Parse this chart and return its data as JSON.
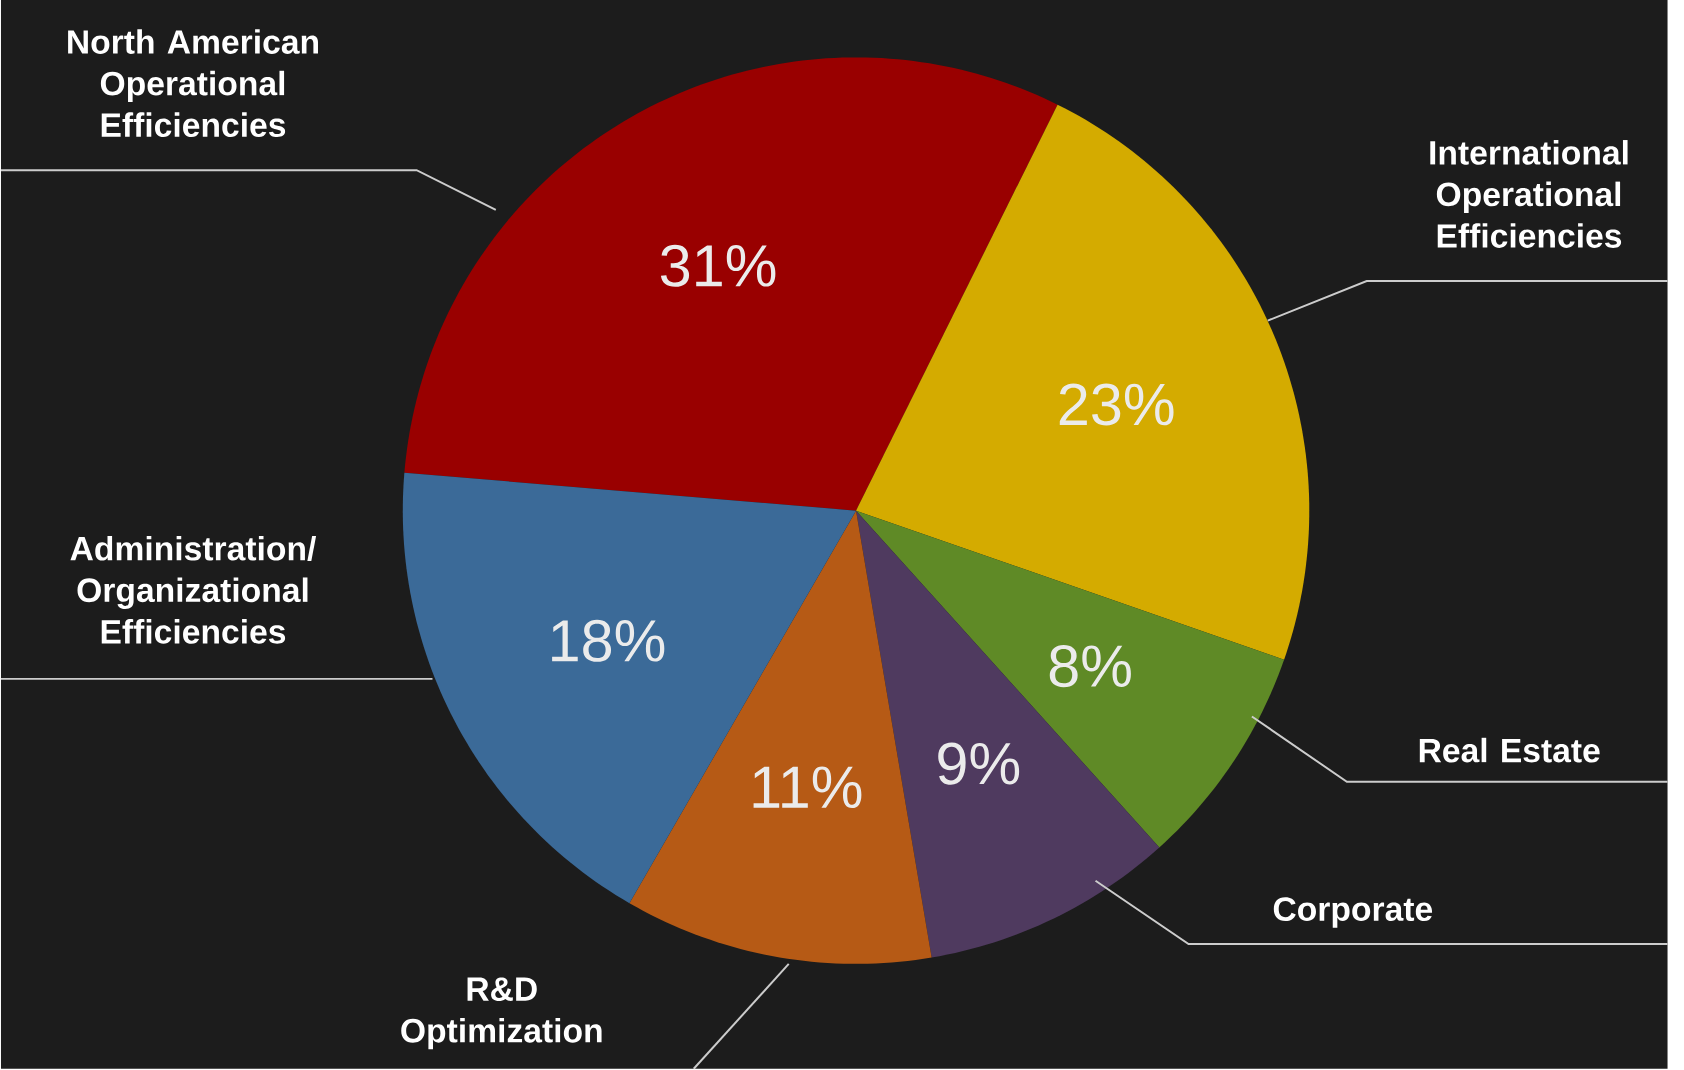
{
  "chart_data": {
    "type": "pie",
    "categories": [
      "North American Operational Efficiencies",
      "International Operational Efficiencies",
      "Real Estate",
      "Corporate",
      "R&D Optimization",
      "Administration/ Organizational Efficiencies"
    ],
    "values": [
      31,
      23,
      8,
      9,
      11,
      18
    ],
    "value_labels": [
      "31%",
      "23%",
      "8%",
      "9%",
      "11%",
      "18%"
    ],
    "colors": [
      "#990000",
      "#d4ab00",
      "#5f8a26",
      "#4f3a5f",
      "#b65a15",
      "#3b6a98"
    ]
  }
}
